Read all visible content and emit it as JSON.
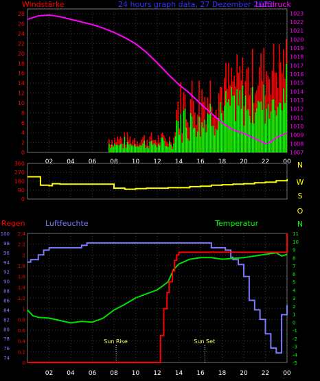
{
  "header": {
    "left_label": "Windstärke",
    "title": "24 hours graph data, 27 Dezember 2023",
    "right_label": "Luftdruck"
  },
  "colors": {
    "wind": "#ff0000",
    "gust": "#00ff00",
    "pressure": "#ff00ff",
    "direction": "#ffff00",
    "rain": "#ff0000",
    "humidity": "#7b7bff",
    "temperature": "#00e000",
    "axis_text": "#ff0000",
    "grid": "#555555"
  },
  "x_ticks": [
    "02",
    "04",
    "06",
    "08",
    "10",
    "12",
    "14",
    "16",
    "18",
    "20",
    "22",
    "00"
  ],
  "chart_data": [
    {
      "type": "bar",
      "name": "wind-pressure",
      "yleft": {
        "ticks": [
          0,
          2,
          4,
          6,
          8,
          10,
          12,
          14,
          16,
          18,
          20,
          22,
          24,
          26,
          28
        ],
        "range": [
          0,
          29
        ]
      },
      "yright": {
        "ticks": [
          1007,
          1008,
          1009,
          1010,
          1011,
          1012,
          1013,
          1014,
          1015,
          1016,
          1017,
          1018,
          1019,
          1020,
          1021,
          1022,
          1023
        ],
        "range": [
          1007,
          1023.5
        ]
      },
      "x_range": [
        0,
        24
      ],
      "gust_hint": {
        "start": 7.5,
        "strong": 13.6,
        "peak": 22.5
      },
      "pressure": {
        "x": [
          0,
          0.5,
          1,
          2,
          3,
          4,
          5,
          6,
          7,
          8,
          9,
          10,
          11,
          12,
          13,
          14,
          15,
          16,
          17,
          18,
          19,
          20,
          21,
          22,
          22.5,
          23,
          23.5,
          24
        ],
        "y": [
          1022.3,
          1022.5,
          1022.7,
          1022.8,
          1022.6,
          1022.3,
          1022.0,
          1021.7,
          1021.3,
          1020.8,
          1020.2,
          1019.5,
          1018.5,
          1017.3,
          1016.0,
          1014.8,
          1013.8,
          1012.6,
          1011.5,
          1010.4,
          1009.6,
          1009.2,
          1008.6,
          1008.0,
          1008.2,
          1008.7,
          1009.0,
          1009.2
        ]
      }
    },
    {
      "type": "line",
      "name": "wind-direction",
      "yleft": {
        "ticks": [
          0,
          90,
          180,
          270,
          360
        ],
        "range": [
          0,
          360
        ]
      },
      "yright_labels": [
        "N",
        "W",
        "S",
        "O",
        "N"
      ],
      "x_range": [
        0,
        24
      ],
      "direction": {
        "x": [
          0,
          0.3,
          1,
          1.2,
          2,
          2.3,
          3,
          4,
          5,
          6,
          7,
          7.8,
          8,
          9,
          10,
          11,
          12,
          13,
          14,
          15,
          16,
          17,
          18,
          19,
          20,
          21,
          22,
          23,
          24
        ],
        "y": [
          225,
          225,
          225,
          140,
          135,
          155,
          150,
          150,
          150,
          150,
          150,
          150,
          110,
          100,
          105,
          110,
          110,
          115,
          115,
          125,
          130,
          140,
          145,
          150,
          155,
          165,
          170,
          185,
          200
        ]
      }
    },
    {
      "type": "line",
      "name": "rain-humidity-temperature",
      "yleft_humidity": {
        "ticks": [
          74,
          76,
          78,
          80,
          82,
          84,
          86,
          88,
          90,
          92,
          94,
          96,
          98,
          100
        ],
        "range": [
          73,
          100
        ]
      },
      "yleft_rain": {
        "ticks": [
          "0",
          "0.2",
          "0.4",
          "0.6",
          "0.8",
          "1",
          "1.2",
          "1.4",
          "1.6",
          "1.8",
          "2",
          "2.2",
          "2.4"
        ],
        "range": [
          0,
          2.4
        ]
      },
      "yright_temp": {
        "ticks": [
          -5,
          -4,
          -3,
          -2,
          -1,
          0,
          1,
          2,
          3,
          4,
          5,
          6,
          7,
          8,
          9,
          10,
          11
        ],
        "range": [
          -5,
          11
        ]
      },
      "x_range": [
        0,
        24
      ],
      "labels": {
        "regen": "Regen",
        "luftfeuchte": "Luftfeuchte",
        "temperatur": "Temperatur",
        "sun_rise": "Sun Rise",
        "sun_set": "Sun Set"
      },
      "sun_rise_x": 8.2,
      "sun_set_x": 16.4,
      "rain": {
        "x": [
          0,
          12.1,
          12.3,
          12.6,
          12.9,
          13.1,
          13.4,
          13.6,
          13.8,
          14,
          24,
          24
        ],
        "y": [
          0,
          0,
          0.5,
          1.0,
          1.3,
          1.5,
          1.7,
          1.9,
          2.0,
          2.05,
          2.05,
          2.4
        ]
      },
      "humidity": {
        "x": [
          0,
          0.3,
          1,
          1.5,
          2,
          4,
          5,
          5.5,
          6,
          6.5,
          7,
          8,
          10,
          12,
          13,
          14,
          15,
          16,
          17,
          18,
          18.3,
          18.8,
          19,
          19.5,
          20,
          20.5,
          21,
          21.5,
          22,
          22.5,
          23,
          23.5,
          24
        ],
        "y": [
          94,
          94.5,
          95.5,
          96.5,
          97,
          97,
          97.5,
          98,
          98,
          98,
          98,
          98,
          98,
          98,
          98,
          98,
          98,
          98,
          97,
          97,
          96.5,
          95,
          94.5,
          93.5,
          91,
          86,
          84,
          82,
          79,
          76,
          75,
          83,
          85
        ]
      },
      "temperature": {
        "x": [
          0,
          0.5,
          1,
          2,
          3,
          4,
          5,
          6,
          7,
          8,
          9,
          10,
          11,
          12,
          13,
          13.5,
          14,
          15,
          16,
          17,
          18,
          19,
          20,
          21,
          22,
          23,
          23.5,
          24
        ],
        "y": [
          1.5,
          0.8,
          0.6,
          0.5,
          0.2,
          -0.1,
          0.1,
          0,
          0.5,
          1.5,
          2.2,
          3,
          3.5,
          4,
          5,
          6.5,
          7.2,
          7.8,
          8,
          8,
          7.8,
          7.9,
          8,
          8.2,
          8.4,
          8.6,
          8.2,
          8.4
        ]
      }
    }
  ]
}
